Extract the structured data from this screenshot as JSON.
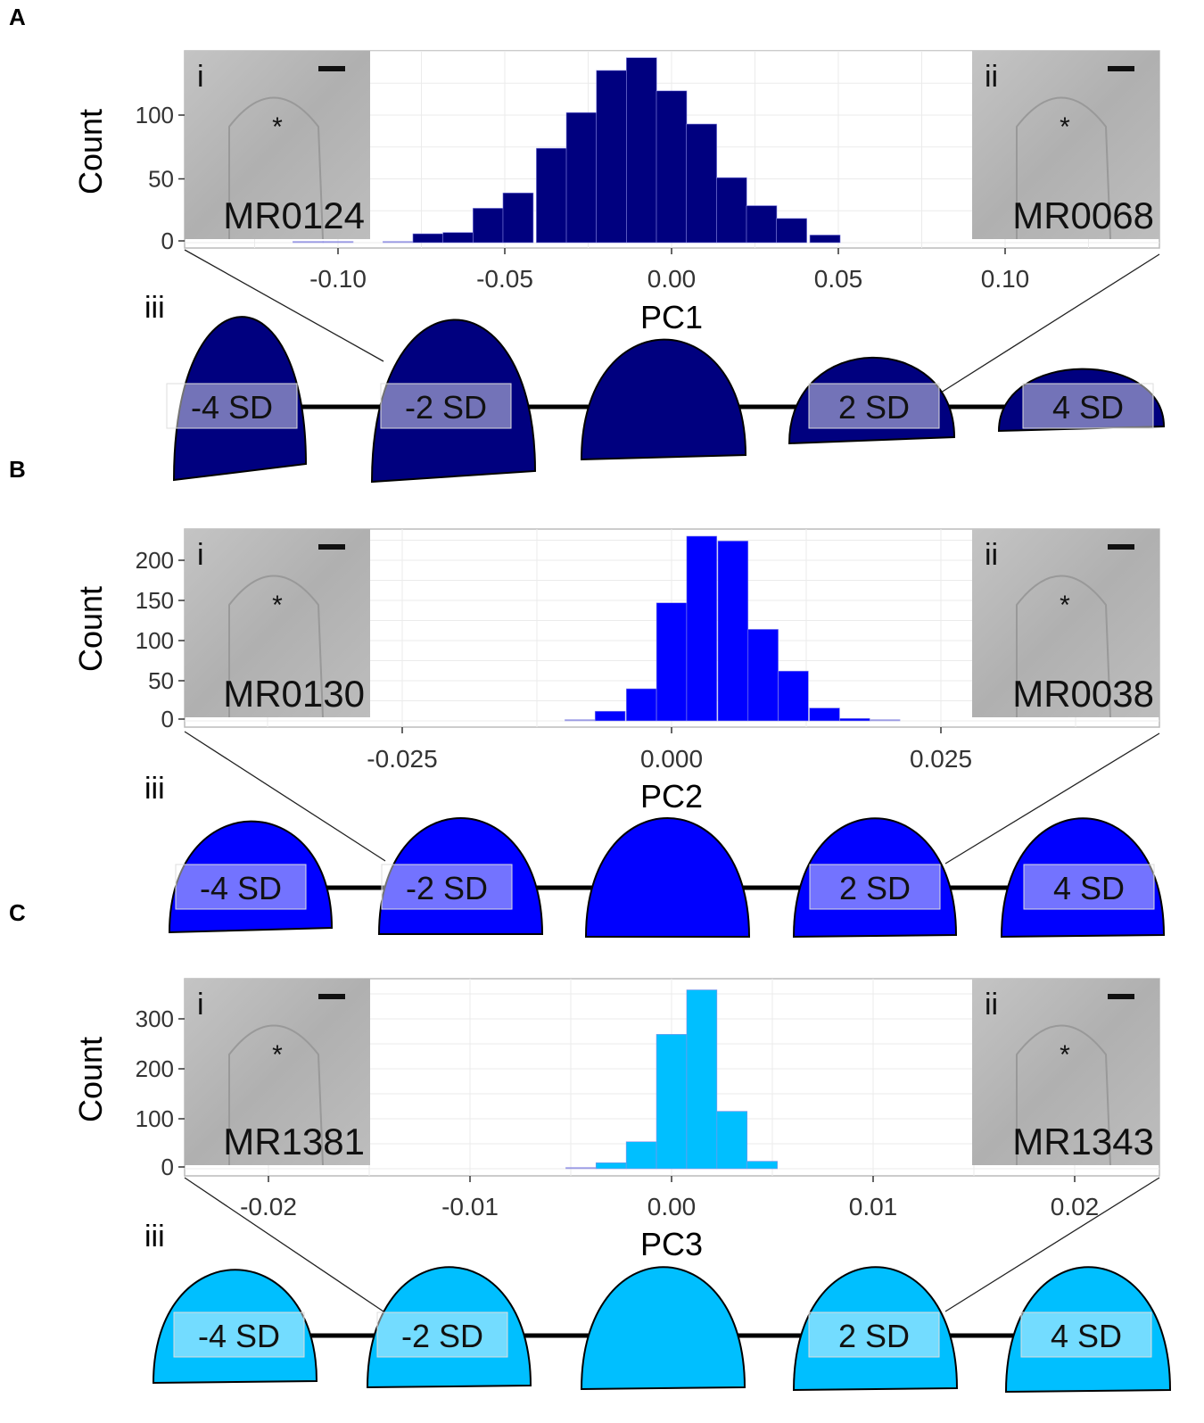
{
  "colors": {
    "panel_a": "#00007f",
    "panel_b": "#0000ff",
    "panel_c": "#00bfff",
    "grid": "#ebebeb",
    "image_gray": "#b4b4b4"
  },
  "chart_data": [
    {
      "panel_label": "A",
      "type": "histogram",
      "xlabel": "PC1",
      "ylabel": "Count",
      "x_ticks": [
        "-0.10",
        "-0.05",
        "0.00",
        "0.05",
        "0.10"
      ],
      "x_tick_values": [
        -0.1,
        -0.05,
        0,
        0.05,
        0.1
      ],
      "y_ticks": [
        "0",
        "50",
        "100"
      ],
      "y_tick_values": [
        0,
        50,
        100
      ],
      "xlim": [
        -0.146,
        0.146
      ],
      "ylim": [
        0,
        150
      ],
      "bin_width": 0.0091,
      "bins": [
        [
          -0.109,
          1
        ],
        [
          -0.1,
          1
        ],
        [
          -0.082,
          1
        ],
        [
          -0.073,
          7
        ],
        [
          -0.064,
          8
        ],
        [
          -0.055,
          27
        ],
        [
          -0.046,
          39
        ],
        [
          -0.036,
          74
        ],
        [
          -0.027,
          102
        ],
        [
          -0.018,
          135
        ],
        [
          -0.009,
          145
        ],
        [
          0,
          119
        ],
        [
          0.009,
          93
        ],
        [
          0.018,
          51
        ],
        [
          0.027,
          29
        ],
        [
          0.036,
          19
        ],
        [
          0.046,
          6
        ]
      ],
      "inset_left": {
        "roman": "i",
        "specimen": "MR0124",
        "marker": "*"
      },
      "inset_right": {
        "roman": "ii",
        "specimen": "MR0068",
        "marker": "*"
      },
      "shape_row_label": "iii",
      "shape_labels": [
        "-4 SD",
        "-2 SD",
        "",
        "2 SD",
        "4 SD"
      ]
    },
    {
      "panel_label": "B",
      "type": "histogram",
      "xlabel": "PC2",
      "ylabel": "Count",
      "x_ticks": [
        "-0.025",
        "0.000",
        "0.025"
      ],
      "x_tick_values": [
        -0.025,
        0,
        0.025
      ],
      "y_ticks": [
        "0",
        "50",
        "100",
        "150",
        "200"
      ],
      "y_tick_values": [
        0,
        50,
        100,
        150,
        200
      ],
      "xlim": [
        -0.0452,
        0.0452
      ],
      "ylim": [
        0,
        240
      ],
      "bin_width": 0.0028,
      "bins": [
        [
          -0.0085,
          1
        ],
        [
          -0.0057,
          12
        ],
        [
          -0.0028,
          40
        ],
        [
          0,
          147
        ],
        [
          0.0028,
          230
        ],
        [
          0.0057,
          224
        ],
        [
          0.0085,
          114
        ],
        [
          0.0113,
          62
        ],
        [
          0.0142,
          16
        ],
        [
          0.017,
          3
        ],
        [
          0.0198,
          1
        ]
      ],
      "inset_left": {
        "roman": "i",
        "specimen": "MR0130",
        "marker": "*"
      },
      "inset_right": {
        "roman": "ii",
        "specimen": "MR0038",
        "marker": "*"
      },
      "shape_row_label": "iii",
      "shape_labels": [
        "-4 SD",
        "-2 SD",
        "",
        "2 SD",
        "4 SD"
      ]
    },
    {
      "panel_label": "C",
      "type": "histogram",
      "xlabel": "PC3",
      "ylabel": "Count",
      "x_ticks": [
        "-0.02",
        "-0.01",
        "0.00",
        "0.01",
        "0.02"
      ],
      "x_tick_values": [
        -0.02,
        -0.01,
        0,
        0.01,
        0.02
      ],
      "y_ticks": [
        "0",
        "100",
        "200",
        "300"
      ],
      "y_tick_values": [
        0,
        100,
        200,
        300
      ],
      "xlim": [
        -0.0242,
        0.0242
      ],
      "ylim": [
        0,
        380
      ],
      "bin_width": 0.0015,
      "bins": [
        [
          -0.0045,
          1
        ],
        [
          -0.003,
          12
        ],
        [
          -0.0015,
          54
        ],
        [
          0,
          269
        ],
        [
          0.0015,
          358
        ],
        [
          0.003,
          115
        ],
        [
          0.0045,
          15
        ]
      ],
      "inset_left": {
        "roman": "i",
        "specimen": "MR1381",
        "marker": "*"
      },
      "inset_right": {
        "roman": "ii",
        "specimen": "MR1343",
        "marker": "*"
      },
      "shape_row_label": "iii",
      "shape_labels": [
        "-4 SD",
        "-2 SD",
        "",
        "2 SD",
        "4 SD"
      ]
    }
  ]
}
